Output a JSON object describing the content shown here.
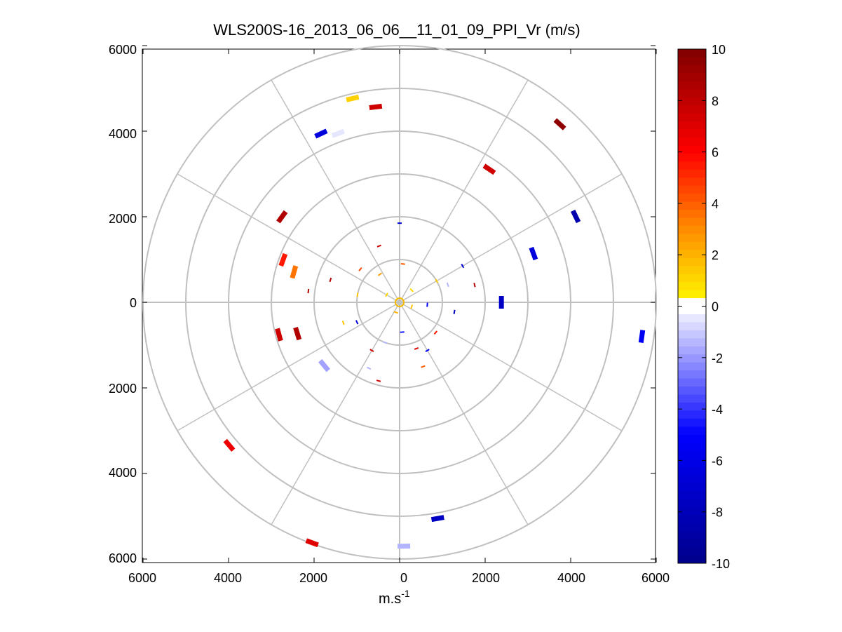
{
  "chart_data": {
    "type": "polar-ppi",
    "title": "WLS200S-16_2013_06_06__11_01_09_PPI_Vr (m/s)",
    "xlabel": "m.s",
    "xlabel_sup": "-1",
    "xlim": [
      -6000,
      6000
    ],
    "ylim": [
      -6000,
      6000
    ],
    "x_tick_labels": [
      "6000",
      "4000",
      "2000",
      "0",
      "2000",
      "4000",
      "6000"
    ],
    "y_tick_labels": [
      "6000",
      "4000",
      "2000",
      "0",
      "2000",
      "4000",
      "6000"
    ],
    "x_tick_values": [
      -6000,
      -4000,
      -2000,
      0,
      2000,
      4000,
      6000
    ],
    "y_tick_values": [
      6000,
      4000,
      2000,
      0,
      -2000,
      -4000,
      -6000
    ],
    "range_rings_m": [
      1000,
      2000,
      3000,
      4000,
      5000,
      6000
    ],
    "spokes_deg": [
      0,
      30,
      60,
      90,
      120,
      150,
      180,
      210,
      240,
      270,
      300,
      330
    ],
    "colorbar": {
      "min": -10,
      "max": 10,
      "tick_values": [
        10,
        8,
        6,
        4,
        2,
        0,
        -2,
        -4,
        -6,
        -8,
        -10
      ],
      "tick_labels": [
        "10",
        "8",
        "6",
        "4",
        "2",
        "0",
        "-2",
        "-4",
        "-6",
        "-8",
        "-10"
      ],
      "colors": {
        "neg_max": "#00008b",
        "neg_mid": "#0000ff",
        "zero": "#ffffff",
        "pos_low": "#ffff00",
        "pos_mid": "#ff8c00",
        "pos_high": "#ff0000",
        "pos_max": "#800000"
      }
    },
    "points": [
      {
        "r": 4890,
        "az": -13,
        "v": 1.2,
        "size": "large"
      },
      {
        "r": 4600,
        "az": -7,
        "v": 7.5,
        "size": "large"
      },
      {
        "r": 4350,
        "az": -25,
        "v": -6.5,
        "size": "large"
      },
      {
        "r": 4200,
        "az": -20,
        "v": -0.5,
        "size": "large"
      },
      {
        "r": 5600,
        "az": 42,
        "v": 9.5,
        "size": "large"
      },
      {
        "r": 3750,
        "az": 34,
        "v": 7.5,
        "size": "large"
      },
      {
        "r": 4580,
        "az": 64,
        "v": -8.5,
        "size": "large"
      },
      {
        "r": 3330,
        "az": 70,
        "v": -6.5,
        "size": "large"
      },
      {
        "r": 5720,
        "az": 98,
        "v": -5.5,
        "size": "large"
      },
      {
        "r": 2380,
        "az": 90,
        "v": -7.5,
        "size": "large"
      },
      {
        "r": 3400,
        "az": -54,
        "v": 8.5,
        "size": "large"
      },
      {
        "r": 2900,
        "az": -70,
        "v": 5.5,
        "size": "large"
      },
      {
        "r": 2570,
        "az": -74,
        "v": 3.5,
        "size": "large"
      },
      {
        "r": 2150,
        "az": -83,
        "v": 8.5,
        "size": "small"
      },
      {
        "r": 2920,
        "az": -105,
        "v": 7.5,
        "size": "large"
      },
      {
        "r": 2500,
        "az": -107,
        "v": 8.5,
        "size": "large"
      },
      {
        "r": 2300,
        "az": -130,
        "v": -1.8,
        "size": "large"
      },
      {
        "r": 5200,
        "az": -130,
        "v": 6.5,
        "size": "large"
      },
      {
        "r": 5980,
        "az": -160,
        "v": 7.0,
        "size": "large"
      },
      {
        "r": 5700,
        "az": 179,
        "v": -1.5,
        "size": "large"
      },
      {
        "r": 5130,
        "az": 170,
        "v": -7.5,
        "size": "large"
      },
      {
        "r": 1850,
        "az": 0,
        "v": -6.5,
        "size": "small"
      },
      {
        "r": 1000,
        "az": 60,
        "v": 1.5,
        "size": "small"
      },
      {
        "r": 1700,
        "az": 60,
        "v": -6.5,
        "size": "small"
      },
      {
        "r": 1800,
        "az": 77,
        "v": 8.5,
        "size": "small"
      },
      {
        "r": 1200,
        "az": 70,
        "v": -1.5,
        "size": "small"
      },
      {
        "r": 900,
        "az": 5,
        "v": 4.0,
        "size": "small"
      },
      {
        "r": 1400,
        "az": -20,
        "v": 7.5,
        "size": "small"
      },
      {
        "r": 1200,
        "az": -50,
        "v": 4.5,
        "size": "small"
      },
      {
        "r": 1000,
        "az": -80,
        "v": 1.5,
        "size": "small"
      },
      {
        "r": 1700,
        "az": -72,
        "v": 8.5,
        "size": "small"
      },
      {
        "r": 1300,
        "az": 100,
        "v": -7.5,
        "size": "small"
      },
      {
        "r": 1100,
        "az": 130,
        "v": 5.5,
        "size": "small"
      },
      {
        "r": 1300,
        "az": 150,
        "v": -5.5,
        "size": "small"
      },
      {
        "r": 1150,
        "az": 160,
        "v": 7.0,
        "size": "small"
      },
      {
        "r": 1000,
        "az": 200,
        "v": -1.5,
        "size": "small"
      },
      {
        "r": 1300,
        "az": 210,
        "v": 7.5,
        "size": "small"
      },
      {
        "r": 1900,
        "az": 195,
        "v": 7.5,
        "size": "small"
      },
      {
        "r": 1100,
        "az": 245,
        "v": -6.5,
        "size": "small"
      },
      {
        "r": 1400,
        "az": 250,
        "v": 1.5,
        "size": "small"
      },
      {
        "r": 1700,
        "az": 205,
        "v": -1.5,
        "size": "small"
      },
      {
        "r": 1600,
        "az": 160,
        "v": 4.0,
        "size": "small"
      },
      {
        "r": 400,
        "az": 45,
        "v": 1.0,
        "size": "small"
      },
      {
        "r": 300,
        "az": 110,
        "v": 1.5,
        "size": "small"
      },
      {
        "r": 350,
        "az": -60,
        "v": 1.0,
        "size": "small"
      },
      {
        "r": 250,
        "az": 200,
        "v": 2.0,
        "size": "small"
      },
      {
        "r": 650,
        "az": 95,
        "v": -5.5,
        "size": "small"
      },
      {
        "r": 700,
        "az": 175,
        "v": -4.5,
        "size": "small"
      },
      {
        "r": 800,
        "az": -35,
        "v": 2.5,
        "size": "small"
      }
    ]
  }
}
